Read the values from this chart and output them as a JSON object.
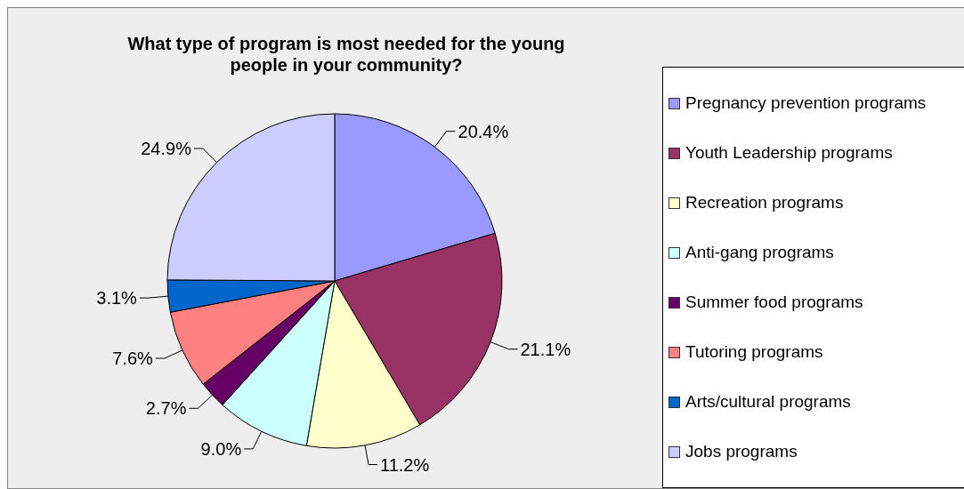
{
  "chart_data": {
    "type": "pie",
    "title": "What type of program is most needed for the young people in your community?",
    "categories": [
      "Pregnancy prevention programs",
      "Youth Leadership programs",
      "Recreation programs",
      "Anti-gang programs",
      "Summer food programs",
      "Tutoring programs",
      "Arts/cultural programs",
      "Jobs programs"
    ],
    "values": [
      20.4,
      21.1,
      11.2,
      9.0,
      2.7,
      7.6,
      3.1,
      24.9
    ],
    "value_labels": [
      "20.4%",
      "21.1%",
      "11.2%",
      "9.0%",
      "2.7%",
      "7.6%",
      "3.1%",
      "24.9%"
    ],
    "colors": [
      "#9999ff",
      "#993366",
      "#ffffcc",
      "#ccffff",
      "#660066",
      "#ff8080",
      "#0066cc",
      "#ccccff"
    ],
    "legend": "right"
  }
}
